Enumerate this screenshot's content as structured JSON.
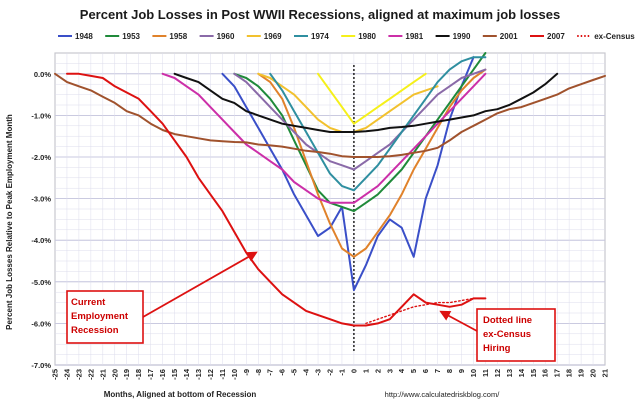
{
  "chart_data": {
    "type": "line",
    "title": "Percent Job Losses in Post WWII Recessions, aligned at maximum job losses",
    "xlabel": "Months, Aligned at bottom of Recession",
    "ylabel": "Percent Job Losses Relative to Peak Employment Month",
    "source": "http://www.calculatedriskblog.com/",
    "xlim": [
      -25,
      21
    ],
    "ylim": [
      -7.0,
      0.5
    ],
    "x_ticks": [
      -25,
      -24,
      -23,
      -22,
      -21,
      -20,
      -19,
      -18,
      -17,
      -16,
      -15,
      -14,
      -13,
      -12,
      -11,
      -10,
      -9,
      -8,
      -7,
      -6,
      -5,
      -4,
      -3,
      -2,
      -1,
      0,
      1,
      2,
      3,
      4,
      5,
      6,
      7,
      8,
      9,
      10,
      11,
      12,
      13,
      14,
      15,
      16,
      17,
      18,
      19,
      20,
      21
    ],
    "y_ticks": [
      0.0,
      -1.0,
      -2.0,
      -3.0,
      -4.0,
      -5.0,
      -6.0,
      -7.0
    ],
    "y_tick_labels": [
      "0.0%",
      "-1.0%",
      "-2.0%",
      "-3.0%",
      "-4.0%",
      "-5.0%",
      "-6.0%",
      "-7.0%"
    ],
    "grid": true,
    "legend_position": "top",
    "series": [
      {
        "name": "1948",
        "color": "#3a4fc8",
        "dashed": false,
        "x": [
          -11,
          -10,
          -9,
          -8,
          -7,
          -6,
          -5,
          -4,
          -3,
          -2,
          -1,
          0,
          1,
          2,
          3,
          4,
          5,
          6,
          7,
          8,
          9,
          10
        ],
        "y": [
          0.0,
          -0.3,
          -0.8,
          -1.3,
          -1.8,
          -2.3,
          -2.9,
          -3.4,
          -3.9,
          -3.7,
          -3.2,
          -5.2,
          -4.6,
          -3.9,
          -3.5,
          -3.7,
          -4.4,
          -3.0,
          -2.2,
          -1.1,
          -0.3,
          0.4
        ]
      },
      {
        "name": "1953",
        "color": "#1f8a3a",
        "dashed": false,
        "x": [
          -10,
          -9,
          -8,
          -7,
          -6,
          -5,
          -4,
          -3,
          -2,
          -1,
          0,
          1,
          2,
          3,
          4,
          5,
          6,
          7,
          8,
          9,
          10,
          11
        ],
        "y": [
          0.0,
          -0.1,
          -0.3,
          -0.6,
          -1.0,
          -1.6,
          -2.2,
          -2.8,
          -3.1,
          -3.2,
          -3.3,
          -3.1,
          -2.9,
          -2.6,
          -2.3,
          -1.9,
          -1.5,
          -1.1,
          -0.7,
          -0.3,
          0.1,
          0.5
        ]
      },
      {
        "name": "1958",
        "color": "#e0822b",
        "dashed": false,
        "x": [
          -8,
          -7,
          -6,
          -5,
          -4,
          -3,
          -2,
          -1,
          0,
          1,
          2,
          3,
          4,
          5,
          6,
          7,
          8,
          9,
          10,
          11
        ],
        "y": [
          0.0,
          -0.2,
          -0.6,
          -1.3,
          -2.1,
          -2.9,
          -3.6,
          -4.2,
          -4.4,
          -4.2,
          -3.8,
          -3.4,
          -2.9,
          -2.3,
          -1.8,
          -1.3,
          -0.8,
          -0.4,
          -0.1,
          0.1
        ]
      },
      {
        "name": "1960",
        "color": "#8a6aa8",
        "dashed": false,
        "x": [
          -10,
          -9,
          -8,
          -7,
          -6,
          -5,
          -4,
          -3,
          -2,
          -1,
          0,
          1,
          2,
          3,
          4,
          5,
          6,
          7,
          8,
          9,
          10,
          11
        ],
        "y": [
          0.0,
          -0.2,
          -0.5,
          -0.8,
          -1.1,
          -1.4,
          -1.7,
          -1.9,
          -2.1,
          -2.2,
          -2.3,
          -2.1,
          -1.9,
          -1.7,
          -1.4,
          -1.1,
          -0.8,
          -0.5,
          -0.3,
          -0.1,
          0.0,
          0.1
        ]
      },
      {
        "name": "1969",
        "color": "#f2c12e",
        "dashed": false,
        "x": [
          -8,
          -7,
          -6,
          -5,
          -4,
          -3,
          -2,
          -1,
          0,
          1,
          2,
          3,
          4,
          5,
          6,
          7
        ],
        "y": [
          0.0,
          -0.1,
          -0.3,
          -0.5,
          -0.8,
          -1.1,
          -1.3,
          -1.4,
          -1.4,
          -1.3,
          -1.1,
          -0.9,
          -0.7,
          -0.5,
          -0.4,
          -0.3
        ]
      },
      {
        "name": "1974",
        "color": "#2f8fa0",
        "dashed": false,
        "x": [
          -7,
          -6,
          -5,
          -4,
          -3,
          -2,
          -1,
          0,
          1,
          2,
          3,
          4,
          5,
          6,
          7,
          8,
          9,
          10,
          11
        ],
        "y": [
          0.0,
          -0.4,
          -0.9,
          -1.4,
          -1.9,
          -2.4,
          -2.7,
          -2.8,
          -2.5,
          -2.2,
          -1.8,
          -1.4,
          -1.0,
          -0.6,
          -0.2,
          0.1,
          0.3,
          0.4,
          0.4
        ]
      },
      {
        "name": "1980",
        "color": "#f5f01a",
        "dashed": false,
        "x": [
          -3,
          -2,
          -1,
          0,
          1,
          2,
          3,
          4,
          5,
          6
        ],
        "y": [
          0.0,
          -0.4,
          -0.8,
          -1.2,
          -1.0,
          -0.8,
          -0.6,
          -0.4,
          -0.2,
          0.0
        ]
      },
      {
        "name": "1981",
        "color": "#cc2fa8",
        "dashed": false,
        "x": [
          -16,
          -15,
          -14,
          -13,
          -12,
          -11,
          -10,
          -9,
          -8,
          -7,
          -6,
          -5,
          -4,
          -3,
          -2,
          -1,
          0,
          1,
          2,
          3,
          4,
          5,
          6,
          7,
          8,
          9,
          10,
          11
        ],
        "y": [
          0.0,
          -0.1,
          -0.3,
          -0.5,
          -0.8,
          -1.1,
          -1.4,
          -1.7,
          -1.9,
          -2.1,
          -2.3,
          -2.6,
          -2.8,
          -3.0,
          -3.1,
          -3.1,
          -3.1,
          -2.9,
          -2.7,
          -2.4,
          -2.1,
          -1.8,
          -1.5,
          -1.2,
          -0.9,
          -0.6,
          -0.3,
          0.0
        ]
      },
      {
        "name": "1990",
        "color": "#111111",
        "dashed": false,
        "x": [
          -15,
          -14,
          -13,
          -12,
          -11,
          -10,
          -9,
          -8,
          -7,
          -6,
          -5,
          -4,
          -3,
          -2,
          -1,
          0,
          1,
          2,
          3,
          4,
          5,
          6,
          7,
          8,
          9,
          10,
          11,
          12,
          13,
          14,
          15,
          16,
          17
        ],
        "y": [
          0.0,
          -0.1,
          -0.2,
          -0.4,
          -0.6,
          -0.7,
          -0.9,
          -1.0,
          -1.1,
          -1.2,
          -1.25,
          -1.3,
          -1.35,
          -1.4,
          -1.4,
          -1.4,
          -1.38,
          -1.35,
          -1.3,
          -1.28,
          -1.25,
          -1.2,
          -1.15,
          -1.1,
          -1.05,
          -1.0,
          -0.9,
          -0.85,
          -0.75,
          -0.6,
          -0.45,
          -0.25,
          0.0
        ]
      },
      {
        "name": "2001",
        "color": "#a0522d",
        "dashed": false,
        "x": [
          -25,
          -24,
          -23,
          -22,
          -21,
          -20,
          -19,
          -18,
          -17,
          -16,
          -15,
          -14,
          -13,
          -12,
          -11,
          -10,
          -9,
          -8,
          -7,
          -6,
          -5,
          -4,
          -3,
          -2,
          -1,
          0,
          1,
          2,
          3,
          4,
          5,
          6,
          7,
          8,
          9,
          10,
          11,
          12,
          13,
          14,
          15,
          16,
          17,
          18,
          19,
          20,
          21
        ],
        "y": [
          0.0,
          -0.2,
          -0.3,
          -0.4,
          -0.55,
          -0.7,
          -0.9,
          -1.0,
          -1.2,
          -1.35,
          -1.45,
          -1.5,
          -1.55,
          -1.6,
          -1.62,
          -1.64,
          -1.65,
          -1.7,
          -1.72,
          -1.75,
          -1.8,
          -1.85,
          -1.88,
          -1.92,
          -1.98,
          -2.0,
          -2.0,
          -2.0,
          -1.98,
          -1.95,
          -1.9,
          -1.85,
          -1.78,
          -1.6,
          -1.4,
          -1.25,
          -1.1,
          -0.95,
          -0.85,
          -0.8,
          -0.7,
          -0.6,
          -0.5,
          -0.35,
          -0.25,
          -0.15,
          -0.05
        ]
      },
      {
        "name": "2007",
        "color": "#dd1111",
        "dashed": false,
        "x": [
          -24,
          -23,
          -22,
          -21,
          -20,
          -19,
          -18,
          -17,
          -16,
          -15,
          -14,
          -13,
          -12,
          -11,
          -10,
          -9,
          -8,
          -7,
          -6,
          -5,
          -4,
          -3,
          -2,
          -1,
          0,
          1,
          2,
          3,
          4,
          5,
          6,
          7,
          8,
          9,
          10,
          11
        ],
        "y": [
          0.0,
          0.0,
          -0.05,
          -0.1,
          -0.3,
          -0.45,
          -0.6,
          -0.9,
          -1.2,
          -1.6,
          -2.0,
          -2.5,
          -2.9,
          -3.3,
          -3.8,
          -4.3,
          -4.7,
          -5.0,
          -5.3,
          -5.5,
          -5.7,
          -5.8,
          -5.9,
          -6.0,
          -6.05,
          -6.05,
          -6.0,
          -5.9,
          -5.6,
          -5.3,
          -5.5,
          -5.55,
          -5.6,
          -5.55,
          -5.4,
          -5.4
        ]
      },
      {
        "name": "ex-Census",
        "color": "#dd1111",
        "dashed": true,
        "x": [
          1,
          2,
          3,
          4,
          5,
          6,
          7,
          8,
          9,
          10,
          11
        ],
        "y": [
          -6.0,
          -5.9,
          -5.8,
          -5.7,
          -5.6,
          -5.55,
          -5.5,
          -5.5,
          -5.45,
          -5.4,
          -5.4
        ]
      }
    ],
    "annotations": [
      {
        "lines": [
          "Current",
          "Employment",
          "Recession"
        ]
      },
      {
        "lines": [
          "Dotted line",
          "ex-Census",
          "Hiring"
        ]
      }
    ]
  }
}
